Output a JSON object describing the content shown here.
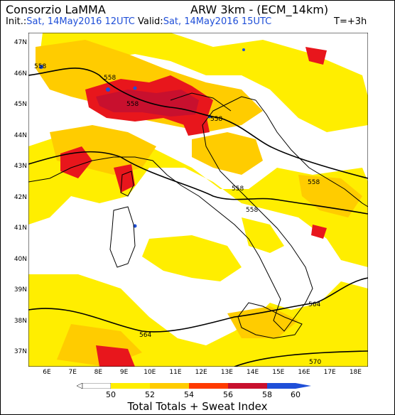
{
  "header": {
    "org": "Consorzio LaMMA",
    "model": "ARW 3km - (ECM_14km)",
    "init_label": "Init.:",
    "init_value": "Sat, 14May2016 12UTC",
    "valid_label": "Valid:",
    "valid_value": "Sat, 14May2016 15UTC",
    "step": "T=+3h"
  },
  "map": {
    "lat_labels": [
      "47N",
      "46N",
      "45N",
      "44N",
      "43N",
      "42N",
      "41N",
      "40N",
      "39N",
      "38N",
      "37N"
    ],
    "lon_labels": [
      "6E",
      "7E",
      "8E",
      "9E",
      "10E",
      "11E",
      "12E",
      "13E",
      "14E",
      "15E",
      "16E",
      "17E",
      "18E"
    ],
    "contour_labels": [
      "558",
      "558",
      "558",
      "558",
      "558",
      "558",
      "558",
      "564",
      "564",
      "570"
    ]
  },
  "colorbar": {
    "ticks": [
      "50",
      "52",
      "54",
      "56",
      "58",
      "60"
    ],
    "colors": [
      "#ffffff",
      "#ffee00",
      "#ffcc00",
      "#ff6a00",
      "#e8161c",
      "#c8102e",
      "#1f4fd8"
    ]
  },
  "footer": "Total Totals + Sweat Index"
}
